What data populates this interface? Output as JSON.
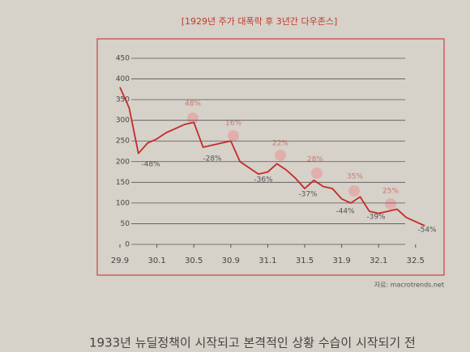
{
  "chart_data": {
    "type": "line",
    "title": "[1929년 주가 대폭락 후 3년간 다우존스]",
    "categories": [
      "29.9",
      null,
      null,
      null,
      "30.1",
      null,
      null,
      null,
      "30.5",
      null,
      null,
      null,
      "30.9",
      null,
      null,
      null,
      "31.1",
      null,
      null,
      null,
      "31.5",
      null,
      null,
      null,
      "31.9",
      null,
      null,
      null,
      "32.1",
      null,
      null,
      null,
      "32.5",
      null
    ],
    "series": [
      {
        "name": "다우존스",
        "color": "#c62a2a",
        "values": [
          380,
          330,
          220,
          245,
          255,
          270,
          280,
          290,
          295,
          235,
          240,
          245,
          250,
          200,
          185,
          170,
          175,
          195,
          180,
          160,
          135,
          155,
          140,
          135,
          110,
          100,
          115,
          80,
          75,
          80,
          85,
          65,
          55,
          45
        ]
      }
    ],
    "ylim": [
      0,
      450
    ],
    "yticks": [
      0,
      50,
      100,
      150,
      200,
      250,
      300,
      350,
      400,
      450
    ],
    "grid": true,
    "annotations": [
      "48%",
      "-48%",
      "16%",
      "-28%",
      "22%",
      "-36%",
      "28%",
      "-37%",
      "35%",
      "-44%",
      "25%",
      "-39%",
      "-54%"
    ],
    "source": "자료: macrotrends.net",
    "footer_text": "1933년 뉴딜정책이 시작되고 본격적인 상황 수습이 시작되기 전"
  }
}
